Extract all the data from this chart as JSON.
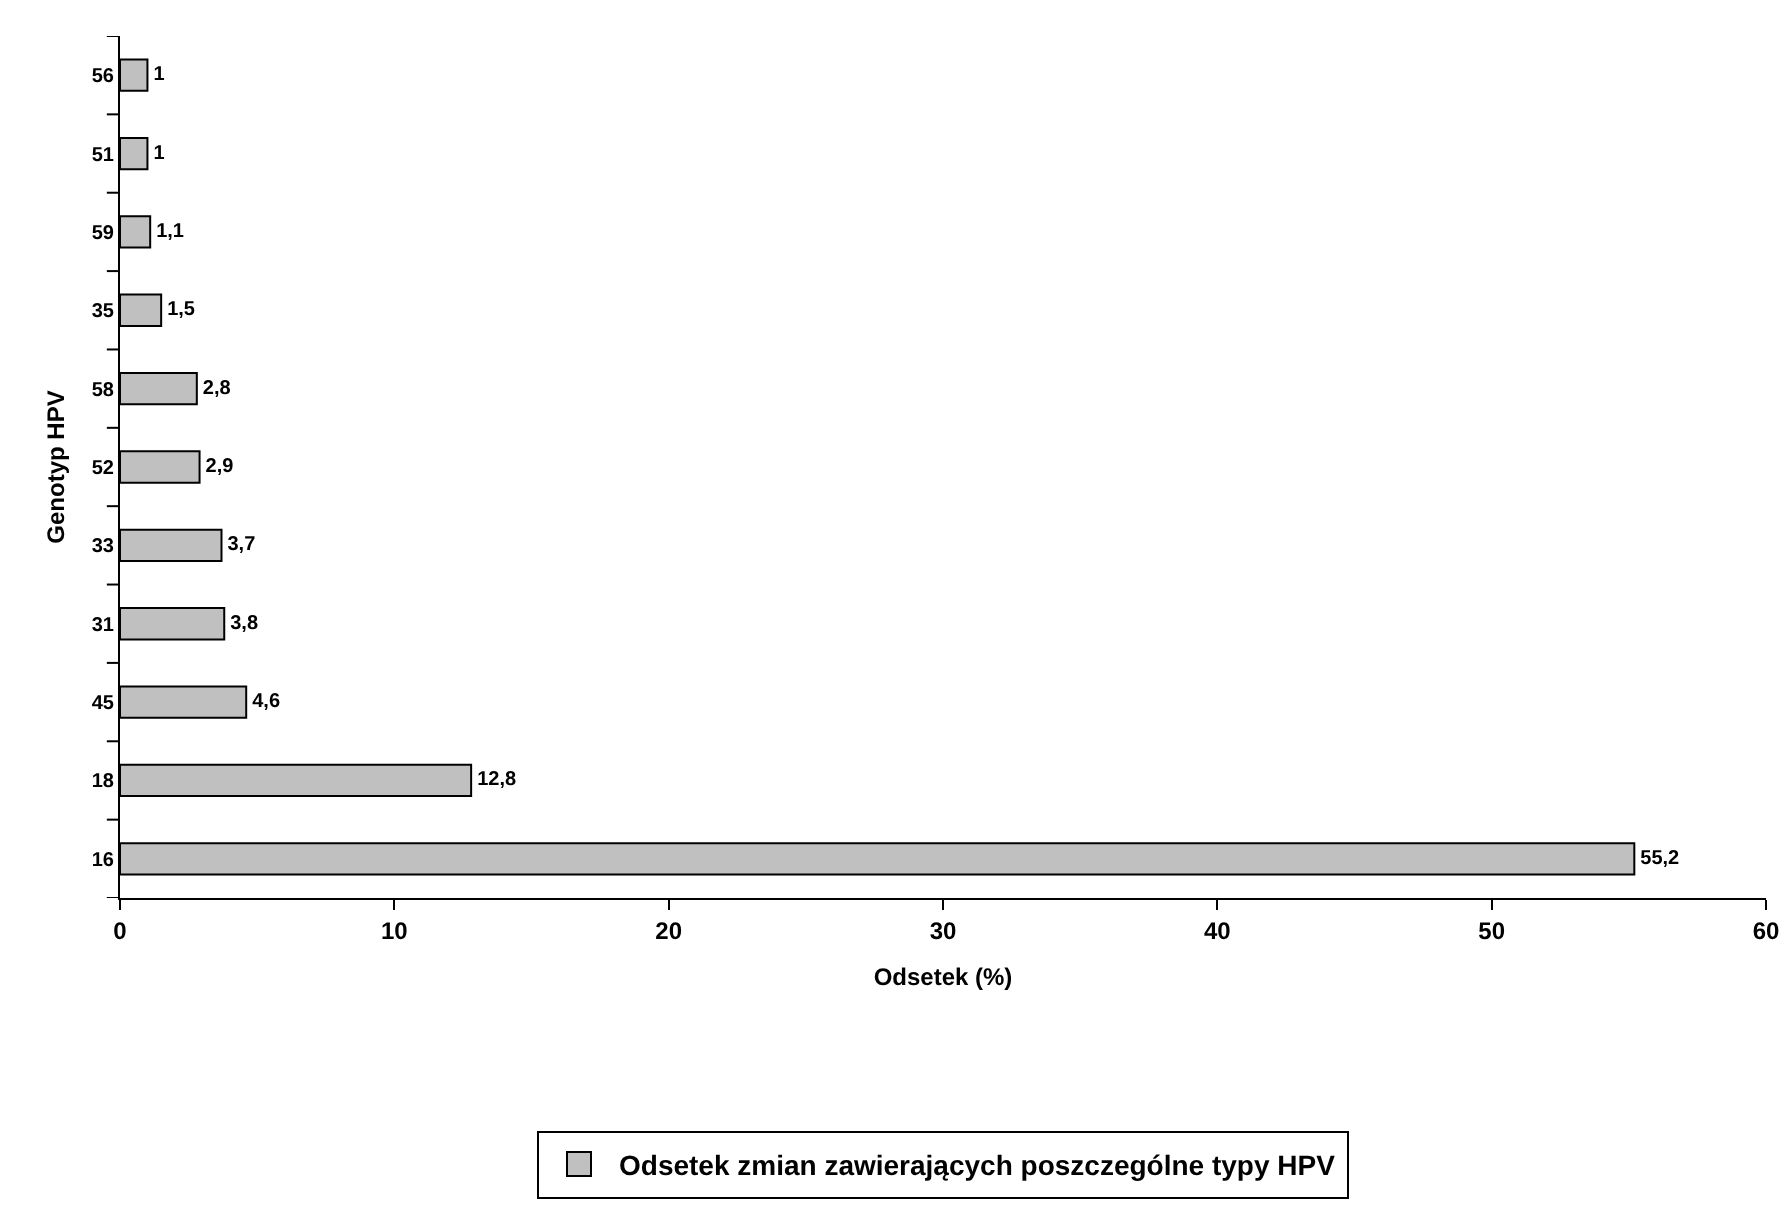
{
  "chart_data": {
    "type": "bar",
    "orientation": "horizontal",
    "xlabel": "Odsetek (%)",
    "ylabel": "Genotyp HPV",
    "categories": [
      "56",
      "51",
      "59",
      "35",
      "58",
      "52",
      "33",
      "31",
      "45",
      "18",
      "16"
    ],
    "series": [
      {
        "name": "Odsetek zmian zawierających poszczególne typy HPV",
        "color": "#c0c0c0",
        "values": [
          1,
          1,
          1.1,
          1.5,
          2.8,
          2.9,
          3.7,
          3.8,
          4.6,
          12.8,
          55.2
        ],
        "value_labels": [
          "1",
          "1",
          "1,1",
          "1,5",
          "2,8",
          "2,9",
          "3,7",
          "3,8",
          "4,6",
          "12,8",
          "55,2"
        ]
      }
    ],
    "xlim": [
      0,
      60
    ],
    "xticks": [
      0,
      10,
      20,
      30,
      40,
      50,
      60
    ],
    "grid": false,
    "legend": "bottom"
  }
}
